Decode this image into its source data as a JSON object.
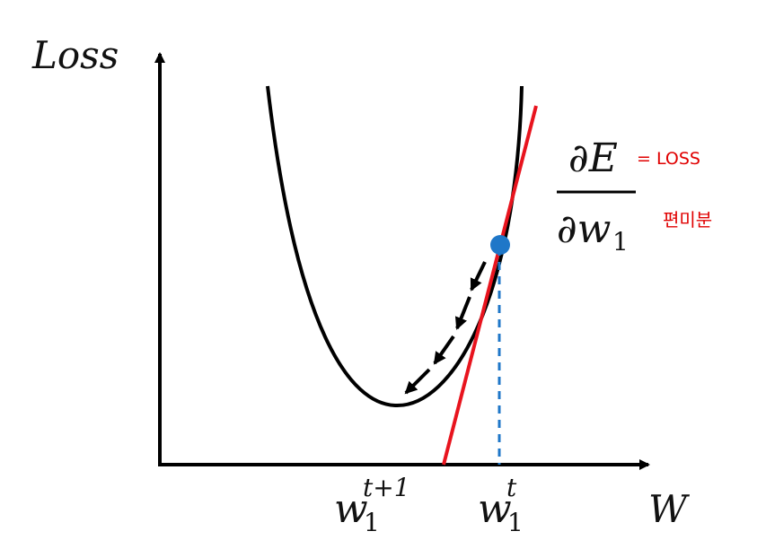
{
  "axes": {
    "y_label": "Loss",
    "x_label": "W"
  },
  "tick_labels": {
    "w_next": {
      "base": "w",
      "sub": "1",
      "sup": "t+1"
    },
    "w_current": {
      "base": "w",
      "sub": "1",
      "sup": "t"
    }
  },
  "derivative": {
    "numerator": "∂E",
    "denominator_base": "∂w",
    "denominator_sub": "1"
  },
  "annotations": {
    "equals_loss": "= LOSS",
    "partial_derivative_korean": "편미분"
  },
  "colors": {
    "curve": "#000000",
    "tangent": "#e8141e",
    "point": "#1f77c8",
    "dashed_guide": "#1f77c8",
    "handwritten": "#e00000"
  },
  "icons": {
    "arrows": "dashed-down-left-arrows"
  }
}
